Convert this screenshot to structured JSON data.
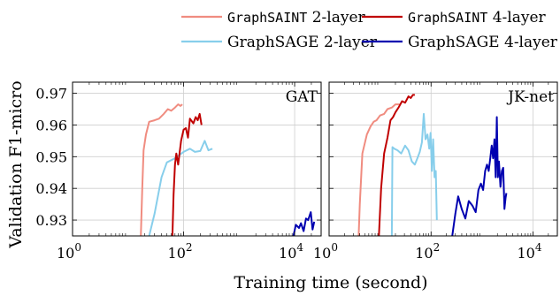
{
  "chart_data": {
    "type": "line",
    "xlabel": "Training time (second)",
    "ylabel": "Validation F1-micro",
    "xscale": "log",
    "xlim": [
      1,
      30000
    ],
    "ylim": [
      0.925,
      0.9735
    ],
    "yticks": [
      0.93,
      0.94,
      0.95,
      0.96,
      0.97
    ],
    "ytick_labels": [
      "0.93",
      "0.94",
      "0.95",
      "0.96",
      "0.97"
    ],
    "xticks": [
      1,
      100,
      10000
    ],
    "xtick_labels": [
      {
        "base": "10",
        "exp": "0"
      },
      {
        "base": "10",
        "exp": "2"
      },
      {
        "base": "10",
        "exp": "4"
      }
    ],
    "grid": true,
    "legend": {
      "placement": "top",
      "entries": [
        {
          "method": "GraphSAINT",
          "suffix": "2-layer",
          "color": "#f08c80",
          "monospace": true
        },
        {
          "method": "GraphSAINT",
          "suffix": "4-layer",
          "color": "#c00000",
          "monospace": true
        },
        {
          "method": "GraphSAGE",
          "suffix": "2-layer",
          "color": "#87ceeb",
          "monospace": false
        },
        {
          "method": "GraphSAGE",
          "suffix": "4-layer",
          "color": "#0000b0",
          "monospace": false
        }
      ]
    },
    "panels": [
      {
        "title": "GAT",
        "series": [
          {
            "legend_index": 0,
            "points": [
              [
                17,
                0.925
              ],
              [
                18,
                0.94
              ],
              [
                19,
                0.952
              ],
              [
                21,
                0.957
              ],
              [
                24,
                0.961
              ],
              [
                30,
                0.9615
              ],
              [
                36,
                0.962
              ],
              [
                44,
                0.9635
              ],
              [
                52,
                0.965
              ],
              [
                60,
                0.9645
              ],
              [
                70,
                0.9655
              ],
              [
                80,
                0.9665
              ],
              [
                88,
                0.966
              ],
              [
                95,
                0.9665
              ]
            ]
          },
          {
            "legend_index": 2,
            "points": [
              [
                24,
                0.925
              ],
              [
                30,
                0.932
              ],
              [
                40,
                0.9435
              ],
              [
                50,
                0.9482
              ],
              [
                70,
                0.9495
              ],
              [
                100,
                0.9515
              ],
              [
                130,
                0.9525
              ],
              [
                160,
                0.9515
              ],
              [
                200,
                0.9518
              ],
              [
                240,
                0.955
              ],
              [
                280,
                0.952
              ],
              [
                330,
                0.9525
              ]
            ]
          },
          {
            "legend_index": 1,
            "points": [
              [
                63,
                0.925
              ],
              [
                66,
                0.938
              ],
              [
                70,
                0.9475
              ],
              [
                74,
                0.951
              ],
              [
                80,
                0.9475
              ],
              [
                90,
                0.955
              ],
              [
                100,
                0.9585
              ],
              [
                110,
                0.959
              ],
              [
                120,
                0.956
              ],
              [
                130,
                0.962
              ],
              [
                150,
                0.9605
              ],
              [
                165,
                0.9625
              ],
              [
                180,
                0.9615
              ],
              [
                195,
                0.9635
              ],
              [
                210,
                0.96
              ]
            ]
          },
          {
            "legend_index": 3,
            "points": [
              [
                9500,
                0.925
              ],
              [
                10500,
                0.9285
              ],
              [
                12000,
                0.9275
              ],
              [
                13000,
                0.929
              ],
              [
                14500,
                0.9265
              ],
              [
                16000,
                0.9305
              ],
              [
                17500,
                0.93
              ],
              [
                19500,
                0.9325
              ],
              [
                21000,
                0.927
              ],
              [
                22500,
                0.9295
              ]
            ]
          }
        ]
      },
      {
        "title": "JK-net",
        "series": [
          {
            "legend_index": 0,
            "points": [
              [
                3.8,
                0.925
              ],
              [
                4,
                0.935
              ],
              [
                4.5,
                0.951
              ],
              [
                5.5,
                0.957
              ],
              [
                6.5,
                0.9595
              ],
              [
                7.5,
                0.961
              ],
              [
                8.5,
                0.9615
              ],
              [
                10,
                0.963
              ],
              [
                12,
                0.9635
              ],
              [
                14,
                0.965
              ],
              [
                17,
                0.9655
              ],
              [
                20,
                0.9665
              ],
              [
                24,
                0.9665
              ]
            ]
          },
          {
            "legend_index": 1,
            "points": [
              [
                9.5,
                0.925
              ],
              [
                10.5,
                0.94
              ],
              [
                12,
                0.951
              ],
              [
                14,
                0.956
              ],
              [
                16,
                0.9615
              ],
              [
                18,
                0.9625
              ],
              [
                20,
                0.964
              ],
              [
                23,
                0.9655
              ],
              [
                27,
                0.9675
              ],
              [
                31,
                0.967
              ],
              [
                36,
                0.969
              ],
              [
                40,
                0.9685
              ],
              [
                44,
                0.9695
              ],
              [
                48,
                0.9695
              ]
            ]
          },
          {
            "legend_index": 2,
            "points": [
              [
                17,
                0.925
              ],
              [
                17.5,
                0.953
              ],
              [
                19,
                0.9525
              ],
              [
                22,
                0.952
              ],
              [
                26,
                0.951
              ],
              [
                31,
                0.9535
              ],
              [
                36,
                0.952
              ],
              [
                42,
                0.9485
              ],
              [
                48,
                0.9475
              ],
              [
                54,
                0.9495
              ],
              [
                60,
                0.9515
              ],
              [
                66,
                0.9545
              ],
              [
                72,
                0.9635
              ],
              [
                78,
                0.9555
              ],
              [
                85,
                0.957
              ],
              [
                92,
                0.9525
              ],
              [
                98,
                0.9575
              ],
              [
                104,
                0.9455
              ],
              [
                110,
                0.9555
              ],
              [
                117,
                0.9435
              ],
              [
                124,
                0.9455
              ],
              [
                130,
                0.93
              ]
            ]
          },
          {
            "legend_index": 3,
            "points": [
              [
                260,
                0.925
              ],
              [
                300,
                0.932
              ],
              [
                340,
                0.9375
              ],
              [
                400,
                0.9335
              ],
              [
                470,
                0.9305
              ],
              [
                550,
                0.936
              ],
              [
                650,
                0.9345
              ],
              [
                750,
                0.9325
              ],
              [
                850,
                0.9395
              ],
              [
                950,
                0.9415
              ],
              [
                1050,
                0.9395
              ],
              [
                1150,
                0.9455
              ],
              [
                1250,
                0.9475
              ],
              [
                1350,
                0.9455
              ],
              [
                1450,
                0.9495
              ],
              [
                1550,
                0.9535
              ],
              [
                1650,
                0.9495
              ],
              [
                1750,
                0.9555
              ],
              [
                1850,
                0.9435
              ],
              [
                1950,
                0.9625
              ],
              [
                2050,
                0.9435
              ],
              [
                2150,
                0.9485
              ],
              [
                2300,
                0.9405
              ],
              [
                2450,
                0.9455
              ],
              [
                2600,
                0.9465
              ],
              [
                2750,
                0.9335
              ],
              [
                2900,
                0.937
              ],
              [
                3000,
                0.9385
              ]
            ]
          }
        ]
      }
    ]
  }
}
